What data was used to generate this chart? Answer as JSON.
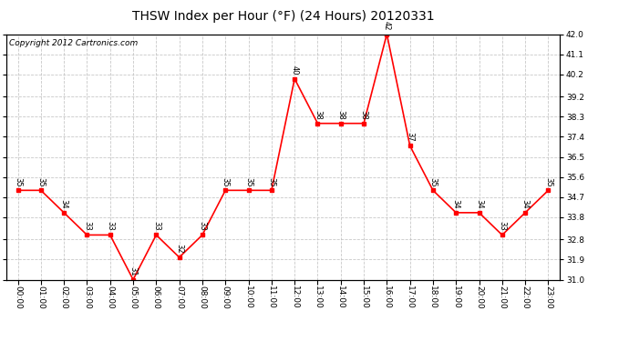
{
  "title": "THSW Index per Hour (°F) (24 Hours) 20120331",
  "copyright": "Copyright 2012 Cartronics.com",
  "hours": [
    "00:00",
    "01:00",
    "02:00",
    "03:00",
    "04:00",
    "05:00",
    "06:00",
    "07:00",
    "08:00",
    "09:00",
    "10:00",
    "11:00",
    "12:00",
    "13:00",
    "14:00",
    "15:00",
    "16:00",
    "17:00",
    "18:00",
    "19:00",
    "20:00",
    "21:00",
    "22:00",
    "23:00"
  ],
  "values": [
    35,
    35,
    34,
    33,
    33,
    31,
    33,
    32,
    33,
    35,
    35,
    35,
    40,
    38,
    38,
    38,
    42,
    37,
    35,
    34,
    34,
    33,
    34,
    35
  ],
  "ylim_min": 31.0,
  "ylim_max": 42.0,
  "yticks": [
    31.0,
    31.9,
    32.8,
    33.8,
    34.7,
    35.6,
    36.5,
    37.4,
    38.3,
    39.2,
    40.2,
    41.1,
    42.0
  ],
  "line_color": "red",
  "marker_color": "red",
  "bg_color": "white",
  "plot_bg_color": "white",
  "grid_color": "#bbbbbb",
  "title_fontsize": 10,
  "copyright_fontsize": 6.5,
  "label_fontsize": 6,
  "tick_fontsize": 6.5
}
